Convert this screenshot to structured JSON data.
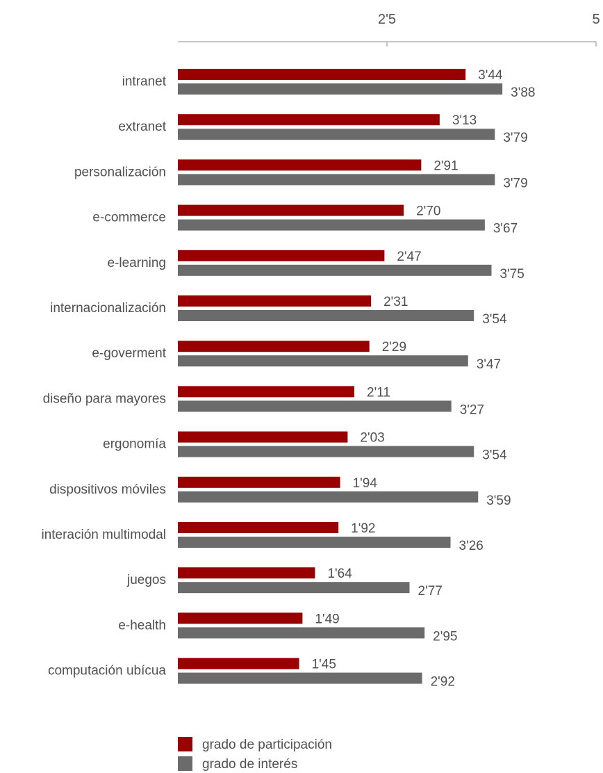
{
  "colors": {
    "participation": "#990000",
    "interest": "#6b6b6b",
    "axis": "#b3b3b3",
    "text": "#505050"
  },
  "chart_data": {
    "type": "bar",
    "orientation": "horizontal",
    "xlim": [
      0,
      5
    ],
    "x_ticks": [
      {
        "value": 2.5,
        "label": "2'5"
      },
      {
        "value": 5,
        "label": "5"
      }
    ],
    "axis_position": "top",
    "grid": false,
    "legend_position": "bottom-center",
    "categories": [
      "intranet",
      "extranet",
      "personalización",
      "e-commerce",
      "e-learning",
      "internacionalización",
      "e-goverment",
      "diseño para mayores",
      "ergonomía",
      "dispositivos móviles",
      "interación multimodal",
      "juegos",
      "e-health",
      "computación ubícua"
    ],
    "series": [
      {
        "name": "grado de participación",
        "values": [
          3.44,
          3.13,
          2.91,
          2.7,
          2.47,
          2.31,
          2.29,
          2.11,
          2.03,
          1.94,
          1.92,
          1.64,
          1.49,
          1.45
        ],
        "labels": [
          "3'44",
          "3'13",
          "2'91",
          "2'70",
          "2'47",
          "2'31",
          "2'29",
          "2'11",
          "2'03",
          "1'94",
          "1'92",
          "1'64",
          "1'49",
          "1'45"
        ]
      },
      {
        "name": "grado de interés",
        "values": [
          3.88,
          3.79,
          3.79,
          3.67,
          3.75,
          3.54,
          3.47,
          3.27,
          3.54,
          3.59,
          3.26,
          2.77,
          2.95,
          2.92
        ],
        "labels": [
          "3'88",
          "3'79",
          "3'79",
          "3'67",
          "3'75",
          "3'54",
          "3'47",
          "3'27",
          "3'54",
          "3'59",
          "3'26",
          "2'77",
          "2'95",
          "2'92"
        ]
      }
    ]
  }
}
